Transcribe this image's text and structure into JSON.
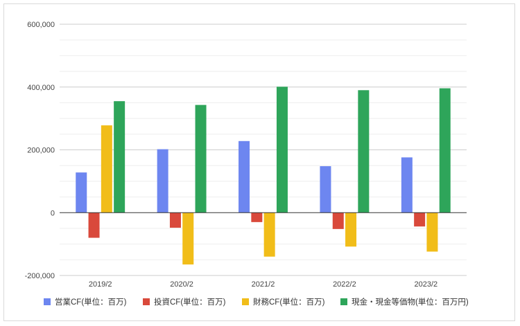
{
  "chart_data": {
    "type": "bar",
    "categories": [
      "2019/2",
      "2020/2",
      "2021/2",
      "2022/2",
      "2023/2"
    ],
    "series": [
      {
        "name": "営業CF(単位：百万)",
        "color": "#6d86f0",
        "values": [
          128000,
          202000,
          228000,
          148000,
          176000
        ]
      },
      {
        "name": "投資CF(単位：百万)",
        "color": "#d9493b",
        "values": [
          -80000,
          -48000,
          -30000,
          -52000,
          -44000
        ]
      },
      {
        "name": "財務CF(単位：百万)",
        "color": "#f1bd19",
        "values": [
          278000,
          -165000,
          -140000,
          -108000,
          -124000
        ]
      },
      {
        "name": "現金・現金等価物(単位：百万円)",
        "color": "#2ea55a",
        "values": [
          355000,
          343000,
          401000,
          390000,
          396000
        ]
      }
    ],
    "ylim": [
      -200000,
      600000
    ],
    "yticks": [
      "600,000",
      "400,000",
      "200,000",
      "0",
      "-200,000"
    ],
    "ytick_values": [
      600000,
      400000,
      200000,
      0,
      -200000
    ],
    "title": "",
    "xlabel": "",
    "ylabel": "",
    "grid": "major and minor horizontal",
    "legend_position": "bottom"
  }
}
